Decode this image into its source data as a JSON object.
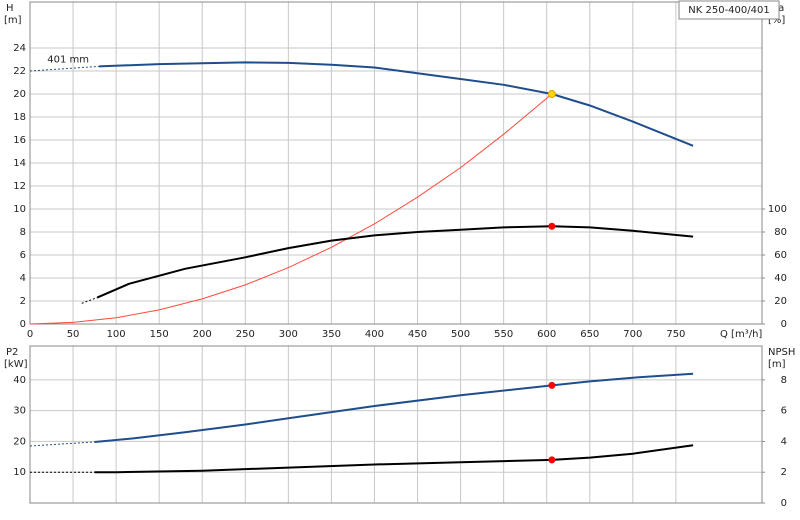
{
  "chart_data": [
    {
      "type": "line",
      "title": "NK 250-400/401",
      "ylabel": "H",
      "yunit": "[m]",
      "y2label": "eta",
      "y2unit": "[%]",
      "xlabel": "Q [m³/h]",
      "xlim": [
        0,
        850
      ],
      "xticks": [
        0,
        50,
        100,
        150,
        200,
        250,
        300,
        350,
        400,
        450,
        500,
        550,
        600,
        650,
        700,
        750
      ],
      "xtick_labels": true,
      "ylim": [
        0,
        28
      ],
      "yticks": [
        0,
        2,
        4,
        6,
        8,
        10,
        12,
        14,
        16,
        18,
        20,
        22,
        24
      ],
      "y2lim": [
        0,
        280
      ],
      "y2ticks": [
        0,
        20,
        40,
        60,
        80,
        100
      ],
      "grid": true,
      "annotations": [
        {
          "text": "401 mm",
          "x": 20,
          "y": 23
        }
      ],
      "series": [
        {
          "color": "#1f4e8c",
          "dashed": true,
          "x": [
            0,
            80
          ],
          "values": [
            22.0,
            22.4
          ]
        },
        {
          "color": "#1f4e8c",
          "x": [
            80,
            150,
            250,
            300,
            350,
            400,
            450,
            500,
            550,
            606,
            650,
            700,
            770
          ],
          "values": [
            22.4,
            22.6,
            22.75,
            22.7,
            22.55,
            22.3,
            21.8,
            21.3,
            20.8,
            20.0,
            19.0,
            17.6,
            15.5
          ]
        },
        {
          "color": "#ff4a3a",
          "thin": true,
          "x": [
            0,
            50,
            100,
            150,
            200,
            250,
            300,
            350,
            400,
            450,
            500,
            550,
            606
          ],
          "values": [
            0,
            0.14,
            0.54,
            1.23,
            2.18,
            3.4,
            4.9,
            6.67,
            8.71,
            11.03,
            13.6,
            16.5,
            20.0
          ]
        },
        {
          "color": "#000000",
          "dashed": true,
          "axis": "y2",
          "x": [
            60,
            78
          ],
          "values": [
            18,
            23
          ]
        },
        {
          "color": "#000000",
          "axis": "y2",
          "x": [
            78,
            115,
            180,
            250,
            300,
            350,
            400,
            450,
            500,
            550,
            606,
            650,
            700,
            770
          ],
          "values": [
            23,
            35,
            48,
            58,
            66,
            72.5,
            77,
            80,
            82,
            84,
            85,
            84,
            81,
            76
          ]
        },
        {
          "color": "#ffd700",
          "points": true,
          "x": [
            606
          ],
          "values": [
            20.0
          ]
        },
        {
          "color": "#ff0000",
          "points": true,
          "axis": "y2",
          "x": [
            606
          ],
          "values": [
            85
          ]
        }
      ]
    },
    {
      "type": "line",
      "ylabel": "P2",
      "yunit": "[kW]",
      "y2label": "NPSH",
      "y2unit": "[m]",
      "xlim": [
        0,
        850
      ],
      "xticks": [
        0,
        50,
        100,
        150,
        200,
        250,
        300,
        350,
        400,
        450,
        500,
        550,
        600,
        650,
        700,
        750
      ],
      "xtick_labels": false,
      "ylim": [
        0,
        51
      ],
      "yticks": [
        10,
        20,
        30,
        40
      ],
      "y2lim": [
        0,
        10.2
      ],
      "y2ticks": [
        0,
        2,
        4,
        6,
        8
      ],
      "grid": true,
      "series": [
        {
          "color": "#1f4e8c",
          "dashed": true,
          "x": [
            0,
            75
          ],
          "values": [
            18.5,
            19.8
          ]
        },
        {
          "color": "#1f4e8c",
          "x": [
            75,
            120,
            180,
            250,
            300,
            400,
            500,
            606,
            650,
            700,
            770
          ],
          "values": [
            19.8,
            21.0,
            23.0,
            25.5,
            27.5,
            31.5,
            35.0,
            38.2,
            39.5,
            40.7,
            42.0
          ]
        },
        {
          "color": "#000000",
          "dashed": true,
          "axis": "y2",
          "x": [
            0,
            75
          ],
          "values": [
            2.0,
            2.0
          ]
        },
        {
          "color": "#000000",
          "axis": "y2",
          "x": [
            75,
            100,
            200,
            300,
            400,
            500,
            606,
            650,
            700,
            770
          ],
          "values": [
            2.0,
            2.0,
            2.1,
            2.3,
            2.5,
            2.65,
            2.8,
            2.95,
            3.2,
            3.75
          ]
        },
        {
          "color": "#ff0000",
          "points": true,
          "x": [
            606
          ],
          "values": [
            38.2
          ]
        },
        {
          "color": "#ff0000",
          "points": true,
          "axis": "y2",
          "x": [
            606
          ],
          "values": [
            2.8
          ]
        }
      ]
    }
  ]
}
